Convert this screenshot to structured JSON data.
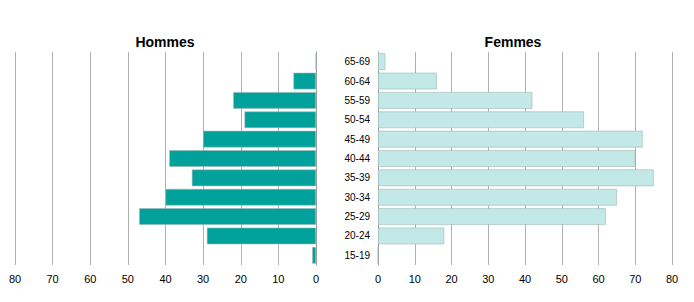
{
  "chart_data": [
    {
      "type": "bar",
      "title": "Hommes",
      "orientation": "horizontal",
      "categories": [
        "15-19",
        "20-24",
        "25-29",
        "30-34",
        "35-39",
        "40-44",
        "45-49",
        "50-54",
        "55-59",
        "60-64",
        "65-69"
      ],
      "values": [
        1,
        29,
        47,
        40,
        33,
        39,
        30,
        19,
        22,
        6,
        0
      ],
      "color": "#00a19a",
      "xlim": [
        80,
        0
      ],
      "xticks": [
        0,
        10,
        20,
        30,
        40,
        50,
        60,
        70,
        80
      ],
      "grid": true,
      "tick_labels": "x"
    },
    {
      "type": "bar",
      "title": "Femmes",
      "orientation": "horizontal",
      "categories": [
        "15-19",
        "20-24",
        "25-29",
        "30-34",
        "35-39",
        "40-44",
        "45-49",
        "50-54",
        "55-59",
        "60-64",
        "65-69"
      ],
      "values": [
        0,
        18,
        62,
        65,
        75,
        70,
        72,
        56,
        42,
        16,
        2
      ],
      "color": "#c2e9e7",
      "xlim": [
        0,
        80
      ],
      "xticks": [
        0,
        10,
        20,
        30,
        40,
        50,
        60,
        70,
        80
      ],
      "grid": true
    }
  ]
}
